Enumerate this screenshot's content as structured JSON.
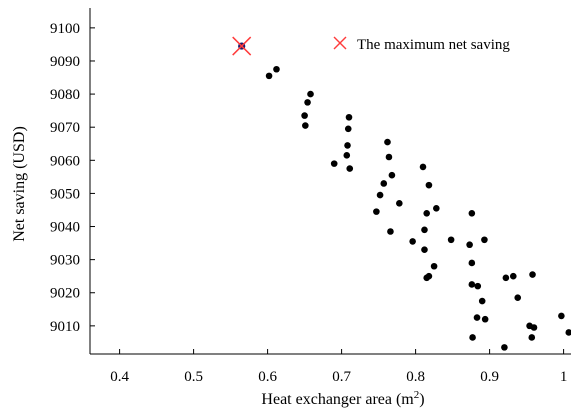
{
  "chart_data": {
    "type": "scatter",
    "xlabel": "Heat exchanger area (m",
    "xlabel_sup": "2",
    "xlabel_suffix": ")",
    "ylabel": "Net saving (USD)",
    "xlim": [
      0.36,
      1.01
    ],
    "ylim": [
      9001.5,
      9106
    ],
    "x_ticks": [
      0.4,
      0.5,
      0.6,
      0.7,
      0.8,
      0.9,
      1
    ],
    "x_tick_labels": [
      "0.4",
      "0.5",
      "0.6",
      "0.7",
      "0.8",
      "0.9",
      "1"
    ],
    "y_ticks": [
      9010,
      9020,
      9030,
      9040,
      9050,
      9060,
      9070,
      9080,
      9090,
      9100
    ],
    "y_tick_labels": [
      "9010",
      "9020",
      "9030",
      "9040",
      "9050",
      "9060",
      "9070",
      "9080",
      "9090",
      "9100"
    ],
    "grid": false,
    "legend_position": "top-right",
    "legend": [
      {
        "label": "The maximum net saving",
        "marker": "x",
        "color": "#ff3b3b"
      }
    ],
    "highlight": {
      "x": 0.565,
      "y": 9094.5
    },
    "points": [
      [
        0.565,
        9094.5
      ],
      [
        0.602,
        9085.5
      ],
      [
        0.612,
        9087.5
      ],
      [
        0.658,
        9080
      ],
      [
        0.654,
        9077.5
      ],
      [
        0.65,
        9073.5
      ],
      [
        0.651,
        9070.5
      ],
      [
        0.71,
        9073
      ],
      [
        0.709,
        9069.5
      ],
      [
        0.708,
        9064.5
      ],
      [
        0.707,
        9061.5
      ],
      [
        0.711,
        9057.5
      ],
      [
        0.69,
        9059
      ],
      [
        0.762,
        9065.5
      ],
      [
        0.764,
        9061
      ],
      [
        0.768,
        9055.5
      ],
      [
        0.757,
        9053
      ],
      [
        0.752,
        9049.5
      ],
      [
        0.778,
        9047
      ],
      [
        0.747,
        9044.5
      ],
      [
        0.766,
        9038.5
      ],
      [
        0.81,
        9058
      ],
      [
        0.818,
        9052.5
      ],
      [
        0.828,
        9045.5
      ],
      [
        0.815,
        9044
      ],
      [
        0.812,
        9039
      ],
      [
        0.796,
        9035.5
      ],
      [
        0.812,
        9033
      ],
      [
        0.825,
        9028
      ],
      [
        0.818,
        9025
      ],
      [
        0.815,
        9024.5
      ],
      [
        0.876,
        9044
      ],
      [
        0.848,
        9036
      ],
      [
        0.873,
        9034.5
      ],
      [
        0.893,
        9036
      ],
      [
        0.876,
        9029
      ],
      [
        0.876,
        9022.5
      ],
      [
        0.884,
        9022
      ],
      [
        0.89,
        9017.5
      ],
      [
        0.883,
        9012.5
      ],
      [
        0.894,
        9012
      ],
      [
        0.877,
        9006.5
      ],
      [
        0.92,
        9003.5
      ],
      [
        0.922,
        9024.5
      ],
      [
        0.932,
        9025
      ],
      [
        0.958,
        9025.5
      ],
      [
        0.938,
        9018.5
      ],
      [
        0.954,
        9010
      ],
      [
        0.96,
        9009.5
      ],
      [
        0.957,
        9006.5
      ],
      [
        0.997,
        9013
      ],
      [
        1.007,
        9008
      ]
    ]
  }
}
